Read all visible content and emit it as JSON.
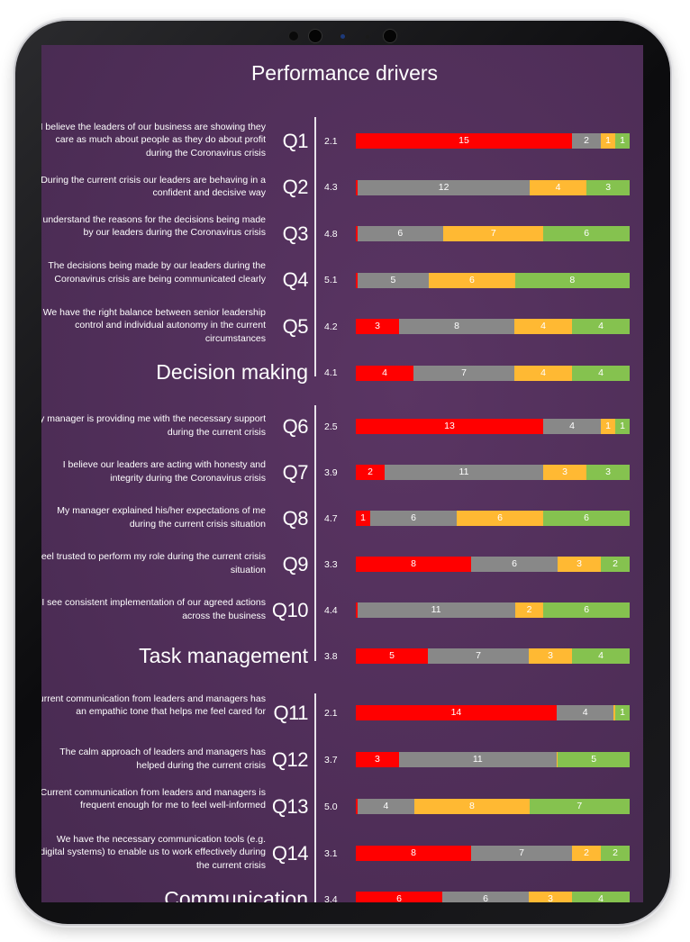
{
  "chart_data": {
    "type": "bar",
    "title": "Performance drivers",
    "stacked": true,
    "colors": {
      "red": "#ff0000",
      "grey": "#888888",
      "amber": "#ffb933",
      "green": "#85c24f"
    },
    "groups": [
      {
        "name": "Decision making",
        "summary": {
          "score": "4.1",
          "segments": [
            4,
            7,
            4,
            4
          ]
        },
        "rows": [
          {
            "id": "Q1",
            "text": "I believe the leaders of our business are showing they care as much about people as they do about profit during the Coronavirus crisis",
            "score": "2.1",
            "segments": [
              15,
              2,
              1,
              1
            ]
          },
          {
            "id": "Q2",
            "text": "During the current crisis our leaders are behaving in a confident and decisive way",
            "score": "4.3",
            "segments": [
              0.15,
              12,
              4,
              3
            ]
          },
          {
            "id": "Q3",
            "text": "I understand the reasons for the decisions being made by our leaders during the Coronavirus crisis",
            "score": "4.8",
            "segments": [
              0.1,
              6,
              7,
              6
            ]
          },
          {
            "id": "Q4",
            "text": "The decisions being made by our leaders during the Coronavirus crisis are being communicated clearly",
            "score": "5.1",
            "segments": [
              0.1,
              5,
              6,
              8
            ]
          },
          {
            "id": "Q5",
            "text": "We have the right balance between senior leadership control and individual autonomy in the current circumstances",
            "score": "4.2",
            "segments": [
              3,
              8,
              4,
              4
            ]
          }
        ]
      },
      {
        "name": "Task management",
        "summary": {
          "score": "3.8",
          "segments": [
            5,
            7,
            3,
            4
          ]
        },
        "rows": [
          {
            "id": "Q6",
            "text": "My manager is providing me with the necessary support during the current crisis",
            "score": "2.5",
            "segments": [
              13,
              4,
              1,
              1
            ]
          },
          {
            "id": "Q7",
            "text": "I believe our leaders are acting with honesty and integrity during the Coronavirus crisis",
            "score": "3.9",
            "segments": [
              2,
              11,
              3,
              3
            ]
          },
          {
            "id": "Q8",
            "text": "My manager explained his/her expectations of me during the current crisis situation",
            "score": "4.7",
            "segments": [
              1,
              6,
              6,
              6
            ]
          },
          {
            "id": "Q9",
            "text": "I feel trusted to perform my role during the current crisis situation",
            "score": "3.3",
            "segments": [
              8,
              6,
              3,
              2
            ]
          },
          {
            "id": "Q10",
            "text": "I see consistent implementation of our agreed actions across the business",
            "score": "4.4",
            "segments": [
              0.1,
              11,
              2,
              6
            ]
          }
        ]
      },
      {
        "name": "Communication",
        "summary": {
          "score": "3.4",
          "segments": [
            6,
            6,
            3,
            4
          ]
        },
        "rows": [
          {
            "id": "Q11",
            "text": "Current communication from leaders and managers has an empathic tone that helps me feel cared for",
            "score": "2.1",
            "segments": [
              14,
              4,
              0.1,
              1
            ]
          },
          {
            "id": "Q12",
            "text": "The calm approach of leaders and managers has helped during the current crisis",
            "score": "3.7",
            "segments": [
              3,
              11,
              0.1,
              5
            ]
          },
          {
            "id": "Q13",
            "text": "Current communication from leaders and managers is frequent enough for me to feel well-informed",
            "score": "5.0",
            "segments": [
              0.1,
              4,
              8,
              7
            ]
          },
          {
            "id": "Q14",
            "text": "We have the necessary communication tools (e.g. digital systems) to enable us to work effectively during the current crisis",
            "score": "3.1",
            "segments": [
              8,
              7,
              2,
              2
            ]
          }
        ]
      }
    ]
  }
}
